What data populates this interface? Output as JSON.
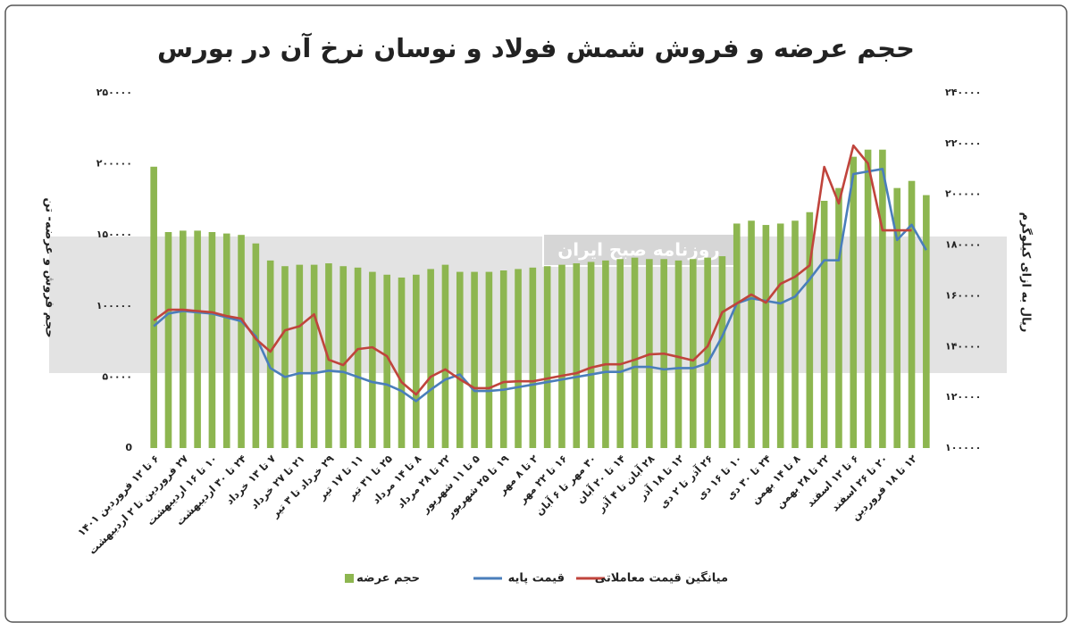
{
  "chart_data": {
    "type": "bar_line",
    "title": "حجم عرضه و فروش شمش فولاد و نوسان نرخ آن در بورس",
    "ylabel": "حجم فروش و عرضه- تن",
    "y2label": "ریال به ازای کیلوگرم",
    "watermark": "روزنامه صبح ایران",
    "categories": [
      "۶ تا ۱۲ فروردین ۱۴۰۱",
      null,
      "۲۷ فروردین تا ۲ اردیبهشت",
      null,
      "۱۰ تا ۱۶ اردیبهشت",
      null,
      "۲۴ تا ۳۰ اردیبهشت",
      null,
      "۷ تا ۱۳ خرداد",
      null,
      "۲۱ تا ۲۷ خرداد",
      null,
      "۲۹ خرداد تا ۳ تیر",
      null,
      "۱۱ تا ۱۷ تیر",
      null,
      "۲۵ تا ۳۱ تیر",
      null,
      "۸ تا ۱۴ مرداد",
      null,
      "۲۲ تا ۲۸ مرداد",
      null,
      "۵ تا ۱۱ شهریور",
      null,
      "۱۹ تا ۲۵ شهریور",
      null,
      "۲ تا ۸ مهر",
      null,
      "۱۶ تا ۲۲ مهر",
      null,
      "۳۰ مهر تا ۶ آبان",
      null,
      "۱۴ تا ۲۰ آبان",
      null,
      "۲۸ آبان تا ۴ آذر",
      null,
      "۱۲ تا ۱۸ آذر",
      null,
      "۲۶ آذر تا ۲ دی",
      null,
      "۱۰ تا ۱۶ دی",
      null,
      "۲۴ تا ۳۰ دی",
      null,
      "۸ تا ۱۴ بهمن",
      null,
      "۲۲ تا ۲۸ بهمن",
      null,
      "۶ تا ۱۲ اسفند",
      null,
      "۲۰ تا ۲۶ اسفند",
      null,
      "۱۲ تا ۱۸ فروردین",
      null
    ],
    "series": [
      {
        "name": "حجم عرضه",
        "type": "bar",
        "color": "#8db650",
        "axis": "y",
        "values": [
          198000,
          152000,
          153000,
          153000,
          152000,
          151000,
          150000,
          144000,
          132000,
          128000,
          129000,
          129000,
          130000,
          128000,
          127000,
          124000,
          122000,
          120000,
          122000,
          126000,
          129000,
          124000,
          124000,
          124000,
          125000,
          126000,
          127000,
          128000,
          129000,
          130000,
          131000,
          132000,
          133000,
          134000,
          133000,
          133000,
          132000,
          133000,
          134000,
          135000,
          158000,
          160000,
          157000,
          158000,
          160000,
          166000,
          174000,
          183000,
          205000,
          210000,
          210000,
          183000,
          188000,
          178000
        ]
      },
      {
        "name": "قیمت پایه",
        "type": "line",
        "color": "#4a7ebb",
        "axis": "y2",
        "values": [
          148000,
          153000,
          154000,
          153500,
          153000,
          151500,
          150000,
          144000,
          131500,
          128000,
          129500,
          129500,
          130500,
          130000,
          128000,
          126000,
          125000,
          122500,
          118500,
          123000,
          127000,
          129000,
          122500,
          122500,
          123000,
          124000,
          125000,
          126000,
          127000,
          128000,
          129000,
          130000,
          130000,
          132000,
          132000,
          131000,
          131500,
          131500,
          133500,
          144000,
          157000,
          159000,
          158000,
          157000,
          159700,
          166500,
          174000,
          174000,
          208000,
          209000,
          210000,
          182000,
          188000,
          178000
        ]
      },
      {
        "name": "میانگین قیمت معاملاتی",
        "type": "line",
        "color": "#c0443c",
        "axis": "y2",
        "values": [
          150300,
          154500,
          154500,
          154000,
          153500,
          152000,
          151000,
          143000,
          138000,
          146400,
          148000,
          152700,
          134800,
          132700,
          139000,
          139700,
          136200,
          126000,
          121100,
          128100,
          131000,
          127100,
          123600,
          123600,
          126000,
          126300,
          126300,
          127400,
          128500,
          129500,
          131700,
          133000,
          133000,
          134800,
          136900,
          137200,
          135900,
          134500,
          140100,
          153500,
          157000,
          160500,
          157300,
          164700,
          167500,
          172000,
          210800,
          196400,
          219200,
          212200,
          185800,
          185800,
          185800,
          null
        ]
      }
    ],
    "ylim": [
      0,
      250000
    ],
    "yticks": [
      0,
      {
        "value": 50000,
        "label": "۵۰۰۰۰"
      },
      {
        "value": 100000,
        "label": "۱۰۰۰۰۰"
      },
      {
        "value": 150000,
        "label": "۱۵۰۰۰۰"
      },
      {
        "value": 200000,
        "label": "۲۰۰۰۰۰"
      },
      {
        "value": 250000,
        "label": "۲۵۰۰۰۰"
      }
    ],
    "y2lim": [
      100000,
      240000
    ],
    "y2ticks": [
      {
        "value": 100000,
        "label": "۱۰۰۰۰۰"
      },
      {
        "value": 120000,
        "label": "۱۲۰۰۰۰"
      },
      {
        "value": 140000,
        "label": "۱۴۰۰۰۰"
      },
      {
        "value": 160000,
        "label": "۱۶۰۰۰۰"
      },
      {
        "value": 180000,
        "label": "۱۸۰۰۰۰"
      },
      {
        "value": 200000,
        "label": "۲۰۰۰۰۰"
      },
      {
        "value": 220000,
        "label": "۲۲۰۰۰۰"
      },
      {
        "value": 240000,
        "label": "۲۴۰۰۰۰"
      }
    ],
    "grid": false,
    "legend": "bottom"
  }
}
